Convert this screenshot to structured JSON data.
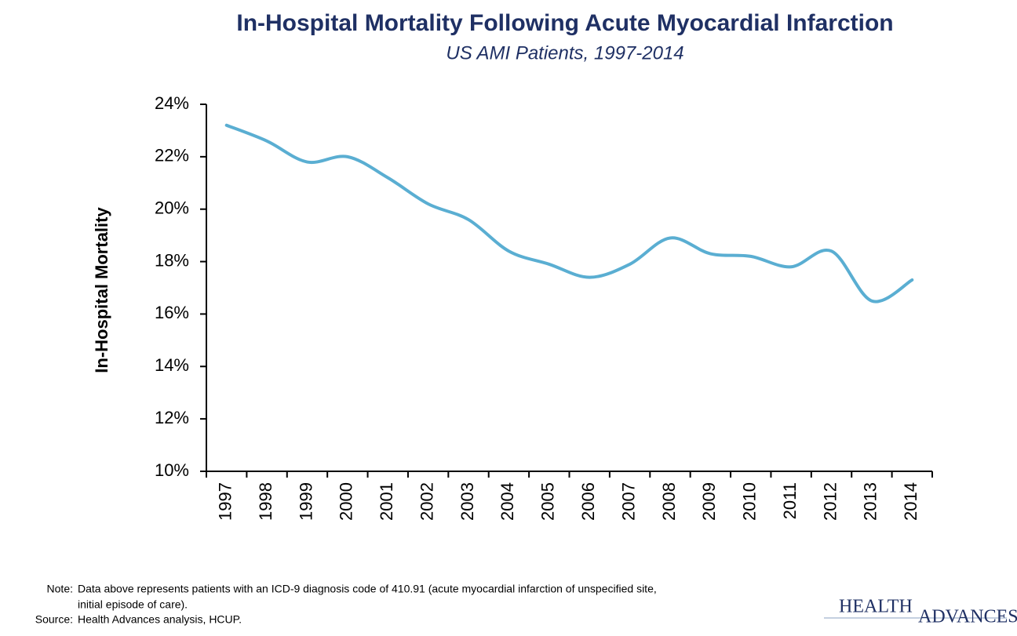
{
  "chart_data": {
    "type": "line",
    "title": "In-Hospital Mortality Following Acute Myocardial Infarction",
    "subtitle": "US AMI Patients, 1997-2014",
    "y_label": "In-Hospital Mortality",
    "categories": [
      "1997",
      "1998",
      "1999",
      "2000",
      "2001",
      "2002",
      "2003",
      "2004",
      "2005",
      "2006",
      "2007",
      "2008",
      "2009",
      "2010",
      "2011",
      "2012",
      "2013",
      "2014"
    ],
    "series": [
      {
        "color": "#5aaed2",
        "values": [
          23.2,
          22.6,
          21.8,
          22.0,
          21.2,
          20.2,
          19.6,
          18.4,
          17.9,
          17.4,
          17.9,
          18.9,
          18.3,
          18.2,
          17.8,
          18.4,
          16.5,
          17.3
        ]
      }
    ],
    "ylim": [
      10,
      24
    ],
    "yticks": [
      {
        "value": 10,
        "label": "10%"
      },
      {
        "value": 12,
        "label": "12%"
      },
      {
        "value": 14,
        "label": "14%"
      },
      {
        "value": 16,
        "label": "16%"
      },
      {
        "value": 18,
        "label": "18%"
      },
      {
        "value": 20,
        "label": "20%"
      },
      {
        "value": 22,
        "label": "22%"
      },
      {
        "value": 24,
        "label": "24%"
      }
    ],
    "grid": false,
    "note_label": "Note:",
    "note": [
      "Data above represents patients with an ICD-9 diagnosis code of 410.91 (acute myocardial infarction of unspecified site,",
      "initial episode of care)."
    ],
    "source_label": "Source:",
    "source": "Health Advances analysis, HCUP.",
    "logo": [
      "HEALTH",
      "ADVANCES"
    ]
  }
}
